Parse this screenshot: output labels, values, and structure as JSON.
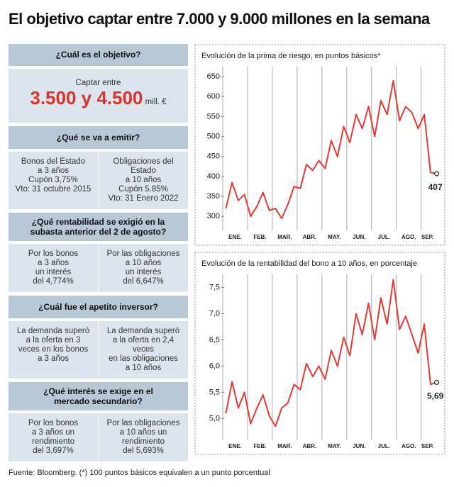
{
  "header": {
    "title": "El objetivo captar entre 7.000 y 9.000 millones en la semana"
  },
  "panel": {
    "sections": [
      {
        "heading": "¿Cuál es el objetivo?",
        "lead": "Captar entre",
        "amount": "3.500 y 4.500",
        "unit": "mill. €"
      },
      {
        "heading_lines": [
          "¿Qué se va a emitir?"
        ],
        "columns": [
          [
            "Bonos del Estado",
            "a 3 años",
            "Cupón 3,75%",
            "Vto: 31 octubre 2015"
          ],
          [
            "Obligaciones del Estado",
            "a 10 años",
            "Cupón 5.85%",
            "Vto: 31 Enero 2022"
          ]
        ]
      },
      {
        "heading_lines": [
          "¿Qué rentabilidad se exigió en la",
          "subasta anterior del 2 de agosto?"
        ],
        "columns": [
          [
            "Por los bonos",
            "a 3 años",
            "un interés",
            "del 4,774%"
          ],
          [
            "Por las obligaciones",
            "a 10 años",
            "un interés",
            "del 6,647%"
          ]
        ]
      },
      {
        "heading_lines": [
          "¿Cuál fue el apetito inversor?"
        ],
        "columns": [
          [
            "La demanda superó",
            "a la oferta en 3",
            "veces en los bonos",
            "a 3 años"
          ],
          [
            "La demanda superó",
            "a la oferta en 2,4 veces",
            "en las obligaciones",
            "a 10 años"
          ]
        ]
      },
      {
        "heading_lines": [
          "¿Qué interés se exige en el",
          "mercado secundario?"
        ],
        "columns": [
          [
            "Por los bonos",
            "a 3 años un",
            "rendimiento",
            "del 3,697%"
          ],
          [
            "Por las obligaciones",
            "a 10 años un",
            "rendimiento",
            "del 5,693%"
          ]
        ]
      }
    ]
  },
  "chart_data": [
    {
      "type": "line",
      "title": "Evolución de la prima de riesgo, en puntos básicos*",
      "categories": [
        null,
        null,
        "ENE.",
        null,
        null,
        null,
        "FEB.",
        null,
        null,
        null,
        "MAR.",
        null,
        null,
        null,
        "ABR.",
        null,
        null,
        null,
        "MAY.",
        null,
        null,
        null,
        "JUN.",
        null,
        null,
        null,
        "JUL.",
        null,
        null,
        null,
        "AGO.",
        null,
        null,
        "SEP.",
        null
      ],
      "series": [
        {
          "color": "#e23b35",
          "values": [
            320,
            385,
            340,
            355,
            300,
            325,
            360,
            315,
            320,
            295,
            330,
            375,
            370,
            430,
            415,
            440,
            420,
            490,
            450,
            525,
            485,
            555,
            520,
            575,
            500,
            590,
            555,
            640,
            540,
            575,
            560,
            520,
            555,
            410,
            407
          ]
        }
      ],
      "ylim": [
        265,
        675
      ],
      "yticks": [
        300,
        350,
        400,
        450,
        500,
        550,
        600,
        650
      ]
    },
    {
      "type": "line",
      "title": "Evolución de la rentabilidad del bono a 10 años, en porcentaje",
      "categories": [
        null,
        null,
        "ENE.",
        null,
        null,
        null,
        "FEB.",
        null,
        null,
        null,
        "MAR.",
        null,
        null,
        null,
        "ABR.",
        null,
        null,
        null,
        "MAY.",
        null,
        null,
        null,
        "JUN.",
        null,
        null,
        null,
        "JUL.",
        null,
        null,
        null,
        "AGO.",
        null,
        null,
        "SEP.",
        null
      ],
      "series": [
        {
          "color": "#e23b35",
          "values": [
            5.1,
            5.7,
            5.2,
            5.5,
            4.9,
            5.2,
            5.45,
            5.05,
            4.85,
            5.2,
            5.3,
            5.65,
            5.55,
            6.05,
            5.8,
            6.0,
            5.75,
            6.3,
            6.0,
            6.55,
            6.2,
            7.0,
            6.6,
            7.2,
            6.5,
            7.3,
            6.8,
            7.65,
            6.7,
            6.95,
            6.6,
            6.25,
            6.8,
            5.65,
            5.69
          ],
          "value_labels": [
            null,
            null,
            null,
            null,
            null,
            null,
            null,
            null,
            null,
            null,
            null,
            null,
            null,
            null,
            null,
            null,
            null,
            null,
            null,
            null,
            null,
            null,
            null,
            null,
            null,
            null,
            null,
            null,
            null,
            null,
            null,
            null,
            null,
            null,
            "5,69"
          ]
        }
      ],
      "ylim": [
        4.6,
        7.75
      ],
      "yticks": [
        {
          "value": 5.0,
          "label": "5,0"
        },
        {
          "value": 5.5,
          "label": "5,5"
        },
        {
          "value": 6.0,
          "label": "6,0"
        },
        {
          "value": 6.5,
          "label": "6,5"
        },
        {
          "value": 7.0,
          "label": "7,0"
        },
        {
          "value": 7.5,
          "label": "7,5"
        }
      ]
    }
  ],
  "footer": {
    "note": "Fuente: Bloomberg. (*) 100 puntos básicos equivalen a un punto porcentual"
  }
}
